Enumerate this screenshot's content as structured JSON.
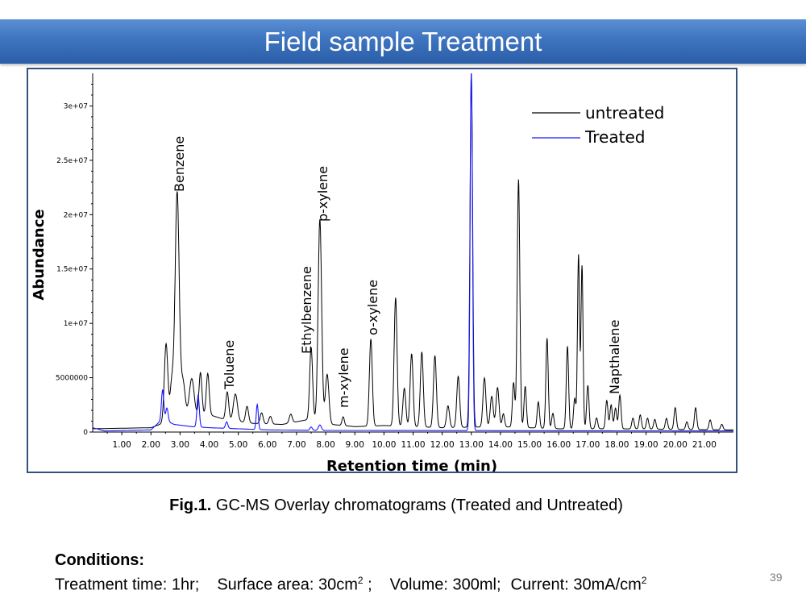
{
  "slide": {
    "title": "Field sample Treatment",
    "caption_prefix": "Fig.1.",
    "caption_text": " GC-MS Overlay chromatograms (Treated and Untreated)",
    "conditions_heading": "Conditions:",
    "conditions": {
      "time": "Treatment time: 1hr;",
      "area_label": "Surface area: 30cm",
      "area_sup": "2",
      "area_end": " ;",
      "volume": "Volume: 300ml;",
      "current_label": "Current: 30mA/cm",
      "current_sup": "2"
    },
    "page_number": "39"
  },
  "chart_data": {
    "type": "line",
    "xlabel": "Retention time (min)",
    "ylabel": "Abundance",
    "xlim": [
      0.0,
      22.0
    ],
    "ylim": [
      0,
      33000000
    ],
    "x_ticks": [
      1.0,
      2.0,
      3.0,
      4.0,
      5.0,
      6.0,
      7.0,
      8.0,
      9.0,
      10.0,
      11.0,
      12.0,
      13.0,
      14.0,
      15.0,
      16.0,
      17.0,
      18.0,
      19.0,
      20.0,
      21.0
    ],
    "x_tick_labels": [
      "1.00",
      "2.00",
      "3.00",
      "4.00",
      "5.00",
      "6.00",
      "7.00",
      "8.00",
      "9.00",
      "10.00",
      "11.00",
      "12.00",
      "13.00",
      "14.00",
      "15.00",
      "16.00",
      "17.00",
      "18.00",
      "19.00",
      "20.00",
      "21.00"
    ],
    "y_ticks": [
      0,
      5000000,
      10000000,
      15000000,
      20000000,
      25000000,
      30000000
    ],
    "y_tick_labels": [
      "0",
      "5000000",
      "1e+07",
      "1.5e+07",
      "2e+07",
      "2.5e+07",
      "3e+07"
    ],
    "legend_position": "top-right",
    "grid": false,
    "series": [
      {
        "name": "untreated",
        "color": "#000000",
        "baseline": [
          [
            0.0,
            300000
          ],
          [
            2.0,
            400000
          ],
          [
            2.5,
            900000
          ],
          [
            3.2,
            1500000
          ],
          [
            4.0,
            1600000
          ],
          [
            4.6,
            1100000
          ],
          [
            5.5,
            800000
          ],
          [
            6.5,
            700000
          ],
          [
            7.5,
            1200000
          ],
          [
            8.2,
            700000
          ],
          [
            9.0,
            500000
          ],
          [
            10.0,
            600000
          ],
          [
            12.0,
            400000
          ],
          [
            14.0,
            500000
          ],
          [
            16.0,
            300000
          ],
          [
            18.0,
            300000
          ],
          [
            22.0,
            200000
          ]
        ],
        "peaks": [
          [
            2.52,
            7200000,
            0.06
          ],
          [
            2.72,
            3500000,
            0.06
          ],
          [
            2.9,
            20800000,
            0.07
          ],
          [
            3.1,
            3200000,
            0.07
          ],
          [
            3.4,
            3400000,
            0.08
          ],
          [
            3.7,
            3900000,
            0.05
          ],
          [
            3.95,
            3800000,
            0.05
          ],
          [
            4.62,
            2600000,
            0.05
          ],
          [
            4.9,
            2500000,
            0.07
          ],
          [
            5.3,
            1500000,
            0.05
          ],
          [
            5.8,
            1000000,
            0.05
          ],
          [
            6.1,
            700000,
            0.05
          ],
          [
            6.8,
            800000,
            0.05
          ],
          [
            7.5,
            6600000,
            0.05
          ],
          [
            7.8,
            18600000,
            0.06
          ],
          [
            8.05,
            4500000,
            0.06
          ],
          [
            8.6,
            800000,
            0.04
          ],
          [
            9.55,
            8000000,
            0.05
          ],
          [
            10.4,
            11800000,
            0.05
          ],
          [
            10.7,
            3500000,
            0.05
          ],
          [
            10.95,
            6700000,
            0.05
          ],
          [
            11.3,
            6900000,
            0.05
          ],
          [
            11.75,
            6600000,
            0.05
          ],
          [
            12.2,
            2000000,
            0.05
          ],
          [
            12.55,
            4700000,
            0.05
          ],
          [
            13.0,
            32700000,
            0.045
          ],
          [
            13.45,
            4500000,
            0.05
          ],
          [
            13.7,
            2800000,
            0.05
          ],
          [
            13.9,
            3600000,
            0.05
          ],
          [
            14.1,
            1200000,
            0.04
          ],
          [
            14.45,
            4100000,
            0.04
          ],
          [
            14.62,
            22800000,
            0.045
          ],
          [
            14.85,
            3800000,
            0.04
          ],
          [
            15.3,
            2400000,
            0.04
          ],
          [
            15.6,
            8300000,
            0.04
          ],
          [
            15.8,
            1400000,
            0.04
          ],
          [
            16.3,
            7600000,
            0.04
          ],
          [
            16.55,
            2800000,
            0.04
          ],
          [
            16.68,
            16000000,
            0.035
          ],
          [
            16.8,
            15000000,
            0.035
          ],
          [
            17.0,
            4000000,
            0.04
          ],
          [
            17.3,
            1000000,
            0.04
          ],
          [
            17.65,
            2600000,
            0.04
          ],
          [
            17.8,
            2200000,
            0.04
          ],
          [
            17.95,
            1900000,
            0.04
          ],
          [
            18.1,
            3100000,
            0.04
          ],
          [
            18.55,
            1000000,
            0.04
          ],
          [
            18.8,
            1300000,
            0.04
          ],
          [
            19.05,
            1000000,
            0.04
          ],
          [
            19.3,
            900000,
            0.04
          ],
          [
            19.7,
            1000000,
            0.04
          ],
          [
            20.0,
            2000000,
            0.04
          ],
          [
            20.4,
            700000,
            0.04
          ],
          [
            20.7,
            2000000,
            0.04
          ],
          [
            21.2,
            900000,
            0.04
          ],
          [
            21.6,
            500000,
            0.04
          ]
        ]
      },
      {
        "name": "Treated",
        "color": "#1a1aff",
        "baseline": [
          [
            0.0,
            400000
          ],
          [
            0.4,
            100000
          ],
          [
            2.0,
            200000
          ],
          [
            2.4,
            1200000
          ],
          [
            2.8,
            700000
          ],
          [
            3.4,
            500000
          ],
          [
            4.0,
            400000
          ],
          [
            5.0,
            300000
          ],
          [
            6.0,
            200000
          ],
          [
            8.0,
            150000
          ],
          [
            22.0,
            100000
          ]
        ],
        "peaks": [
          [
            2.4,
            2700000,
            0.04
          ],
          [
            2.55,
            1200000,
            0.04
          ],
          [
            3.62,
            2900000,
            0.04
          ],
          [
            4.6,
            600000,
            0.04
          ],
          [
            5.65,
            2300000,
            0.035
          ],
          [
            7.5,
            300000,
            0.04
          ],
          [
            7.8,
            500000,
            0.05
          ],
          [
            13.0,
            33000000,
            0.04
          ]
        ]
      }
    ],
    "annotations": [
      "Benzene",
      "Toluene",
      "Ethylbenzene",
      "p-xylene",
      "m-xylene",
      "o-xylene",
      "Napthalene"
    ]
  }
}
